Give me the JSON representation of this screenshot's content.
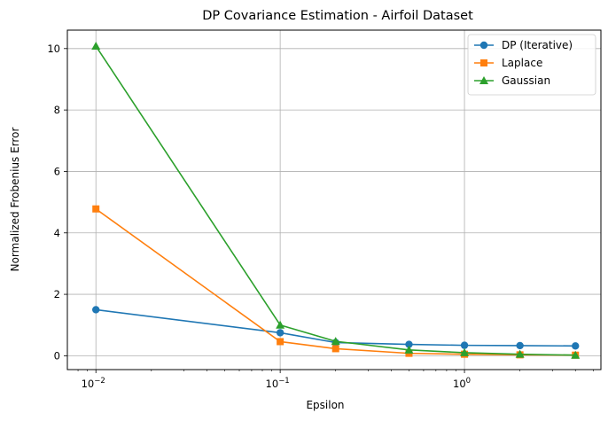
{
  "chart_data": {
    "type": "line",
    "title": "DP Covariance Estimation - Airfoil Dataset",
    "xlabel": "Epsilon",
    "ylabel": "Normalized Frobenius Error",
    "xscale": "log",
    "xlim": [
      0.007,
      5.5
    ],
    "ylim": [
      -0.45,
      10.6
    ],
    "grid": true,
    "legend_position": "top-right",
    "x": [
      0.01,
      0.1,
      0.2,
      0.5,
      1,
      2,
      4
    ],
    "xticks": [
      {
        "value": 0.01,
        "base": "10",
        "exp": "−2"
      },
      {
        "value": 0.1,
        "base": "10",
        "exp": "−1"
      },
      {
        "value": 1,
        "base": "10",
        "exp": "0"
      }
    ],
    "yticks": [
      0,
      2,
      4,
      6,
      8,
      10
    ],
    "series": [
      {
        "name": "DP (Iterative)",
        "color": "#1f77b4",
        "marker": "circle",
        "values": [
          1.5,
          0.75,
          0.43,
          0.37,
          0.34,
          0.33,
          0.32
        ]
      },
      {
        "name": "Laplace",
        "color": "#ff7f0e",
        "marker": "square",
        "values": [
          4.78,
          0.46,
          0.23,
          0.08,
          0.05,
          0.03,
          0.02
        ]
      },
      {
        "name": "Gaussian",
        "color": "#2ca02c",
        "marker": "triangle",
        "values": [
          10.08,
          1.0,
          0.47,
          0.19,
          0.1,
          0.05,
          0.02
        ]
      }
    ]
  }
}
